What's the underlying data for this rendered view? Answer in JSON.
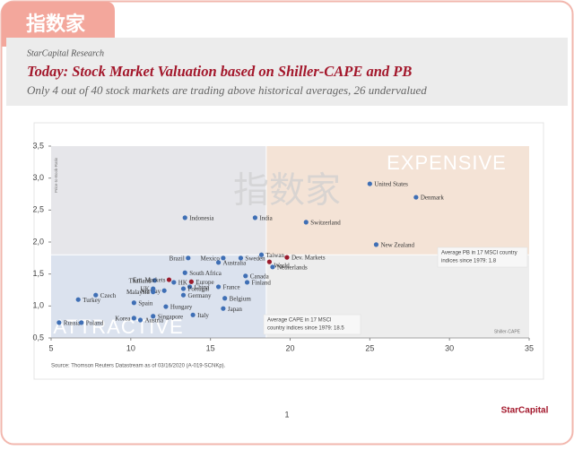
{
  "logo": "指数家",
  "watermark": "指数家",
  "header": {
    "brand": "StarCapital Research",
    "title": "Today: Stock Market Valuation based on Shiller-CAPE and PB",
    "subtitle": "Only 4 out of 40 stock markets are trading above historical averages, 26 undervalued"
  },
  "chart_data": {
    "type": "scatter",
    "y_label": "Price-to-Book-Ratio",
    "x_label": "Shiller-CAPE",
    "quadrant_labels": [
      "EXPENSIVE",
      "ATTRACTIVE"
    ],
    "annotations": [
      [
        "Average PB in 17 MSCI country",
        "indices since 1979: 1.8"
      ],
      [
        "Average CAPE in 17 MSCI",
        "country indices since 1979: 18.5"
      ]
    ],
    "cape_avg": 18.5,
    "pb_avg": 1.8,
    "xlim": [
      5,
      35
    ],
    "xticks": [
      5,
      10,
      15,
      20,
      25,
      30,
      35
    ],
    "ylim": [
      0.5,
      3.5
    ],
    "yticks": [
      {
        "value": 0.5,
        "label": "0,5"
      },
      {
        "value": 1.0,
        "label": "1,0"
      },
      {
        "value": 1.5,
        "label": "1,5"
      },
      {
        "value": 2.0,
        "label": "2,0"
      },
      {
        "value": 2.5,
        "label": "2,5"
      },
      {
        "value": 3.0,
        "label": "3,0"
      },
      {
        "value": 3.5,
        "label": "3,5"
      }
    ],
    "series": [
      {
        "color": "#3f6fb5",
        "labels": [
          "United States",
          "Denmark",
          "Indonesia",
          "India",
          "Switzerland",
          "New Zealand",
          "Brazil",
          "Mexico",
          "Sweden",
          "Taiwan",
          "Australia",
          "Netherlands",
          "Canada",
          "Finland",
          "South Africa",
          "Thailand",
          "HK",
          "China",
          "Portugal",
          "UK",
          "Norway",
          "Malaysia",
          "Germany",
          "France",
          "Belgium",
          "Japan",
          "Czech",
          "Turkey",
          "Spain",
          "Hungary",
          "Italy",
          "Singapore",
          "Korea",
          "Austria",
          "Russia",
          "Poland"
        ],
        "x": [
          25.0,
          27.9,
          13.4,
          17.8,
          21.0,
          25.4,
          13.6,
          15.8,
          16.9,
          18.2,
          15.5,
          18.9,
          17.2,
          17.3,
          13.4,
          11.5,
          12.7,
          13.7,
          13.3,
          11.4,
          12.1,
          11.4,
          13.3,
          15.5,
          15.9,
          15.8,
          7.8,
          6.7,
          10.2,
          12.2,
          13.9,
          11.4,
          10.2,
          10.6,
          5.5,
          6.9
        ],
        "y": [
          2.91,
          2.7,
          2.38,
          2.38,
          2.31,
          1.96,
          1.75,
          1.75,
          1.75,
          1.8,
          1.68,
          1.61,
          1.47,
          1.37,
          1.52,
          1.4,
          1.37,
          1.3,
          1.27,
          1.27,
          1.24,
          1.22,
          1.17,
          1.3,
          1.12,
          0.96,
          1.17,
          1.1,
          1.05,
          0.99,
          0.86,
          0.84,
          0.81,
          0.78,
          0.74,
          0.74
        ]
      },
      {
        "color": "#9b1b2c",
        "labels": [
          "Dev. Markets",
          "World",
          "Em. Markets",
          "Europe"
        ],
        "x": [
          19.8,
          18.7,
          12.4,
          13.8
        ],
        "y": [
          1.76,
          1.69,
          1.41,
          1.38
        ]
      }
    ],
    "source": "Source: Thomson Reuters Datastream as of 03/16/2020 (A-019-SCNKp)."
  },
  "page_number": "1",
  "footer_logo": "StarCapital"
}
